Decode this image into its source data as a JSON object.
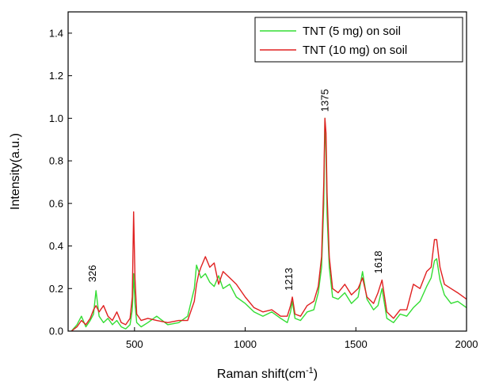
{
  "chart_data": {
    "type": "line",
    "title": "",
    "xlabel_main": "Raman shift(cm",
    "xlabel_sup": "-1",
    "xlabel_tail": ")",
    "ylabel": "Intensity(a.u.)",
    "xlim": [
      200,
      2000
    ],
    "ylim": [
      0,
      1.5
    ],
    "x_ticks": [
      500,
      1000,
      1500,
      2000
    ],
    "x_tick_labels": [
      "500",
      "1000",
      "1500",
      "2000"
    ],
    "y_ticks": [
      0.0,
      0.2,
      0.4,
      0.6,
      0.8,
      1.0,
      1.2,
      1.4
    ],
    "y_tick_labels": [
      "0.0",
      "0.2",
      "0.4",
      "0.6",
      "0.8",
      "1.0",
      "1.2",
      "1.4"
    ],
    "grid": false,
    "legend_position": "top-right",
    "annotations": [
      {
        "text": "326",
        "x": 326,
        "y": 0.23
      },
      {
        "text": "1213",
        "x": 1213,
        "y": 0.19
      },
      {
        "text": "1375",
        "x": 1375,
        "y": 1.03
      },
      {
        "text": "1618",
        "x": 1618,
        "y": 0.27
      }
    ],
    "series": [
      {
        "name": "TNT (5 mg) on soil",
        "color": "#33dd33",
        "x": [
          215,
          240,
          260,
          280,
          300,
          315,
          326,
          340,
          360,
          380,
          400,
          420,
          440,
          460,
          480,
          490,
          496,
          502,
          510,
          530,
          560,
          600,
          650,
          700,
          740,
          770,
          780,
          790,
          800,
          820,
          840,
          860,
          880,
          900,
          930,
          960,
          1000,
          1040,
          1080,
          1120,
          1160,
          1190,
          1205,
          1213,
          1225,
          1250,
          1280,
          1310,
          1330,
          1345,
          1355,
          1360,
          1365,
          1370,
          1380,
          1395,
          1420,
          1450,
          1480,
          1510,
          1530,
          1550,
          1580,
          1600,
          1618,
          1640,
          1670,
          1700,
          1730,
          1760,
          1790,
          1820,
          1840,
          1855,
          1865,
          1880,
          1900,
          1930,
          1960,
          2000
        ],
        "y": [
          0.0,
          0.03,
          0.07,
          0.02,
          0.05,
          0.08,
          0.19,
          0.07,
          0.04,
          0.06,
          0.03,
          0.05,
          0.02,
          0.01,
          0.03,
          0.1,
          0.27,
          0.13,
          0.04,
          0.02,
          0.04,
          0.07,
          0.03,
          0.04,
          0.07,
          0.2,
          0.31,
          0.28,
          0.25,
          0.27,
          0.23,
          0.21,
          0.26,
          0.2,
          0.22,
          0.16,
          0.13,
          0.09,
          0.07,
          0.09,
          0.06,
          0.04,
          0.09,
          0.14,
          0.06,
          0.05,
          0.09,
          0.1,
          0.18,
          0.3,
          0.6,
          1.0,
          0.84,
          0.55,
          0.3,
          0.16,
          0.15,
          0.18,
          0.13,
          0.16,
          0.28,
          0.15,
          0.1,
          0.12,
          0.2,
          0.06,
          0.04,
          0.08,
          0.07,
          0.11,
          0.14,
          0.21,
          0.25,
          0.33,
          0.34,
          0.24,
          0.17,
          0.13,
          0.14,
          0.11
        ]
      },
      {
        "name": "TNT (10 mg) on soil",
        "color": "#e02020",
        "x": [
          215,
          240,
          260,
          280,
          300,
          315,
          326,
          340,
          360,
          380,
          400,
          420,
          440,
          460,
          480,
          490,
          496,
          502,
          510,
          530,
          560,
          600,
          650,
          700,
          740,
          770,
          780,
          790,
          800,
          820,
          840,
          860,
          880,
          900,
          930,
          960,
          1000,
          1040,
          1080,
          1120,
          1160,
          1190,
          1205,
          1213,
          1225,
          1250,
          1280,
          1310,
          1330,
          1345,
          1355,
          1360,
          1365,
          1370,
          1380,
          1395,
          1420,
          1450,
          1480,
          1510,
          1530,
          1550,
          1580,
          1600,
          1618,
          1640,
          1670,
          1700,
          1730,
          1760,
          1790,
          1820,
          1840,
          1855,
          1865,
          1880,
          1900,
          1930,
          1960,
          2000
        ],
        "y": [
          0.0,
          0.02,
          0.05,
          0.03,
          0.06,
          0.1,
          0.12,
          0.09,
          0.12,
          0.07,
          0.05,
          0.09,
          0.04,
          0.03,
          0.06,
          0.16,
          0.56,
          0.25,
          0.08,
          0.05,
          0.06,
          0.05,
          0.04,
          0.05,
          0.05,
          0.14,
          0.22,
          0.27,
          0.3,
          0.35,
          0.3,
          0.32,
          0.22,
          0.28,
          0.25,
          0.22,
          0.16,
          0.11,
          0.09,
          0.1,
          0.07,
          0.07,
          0.12,
          0.16,
          0.08,
          0.07,
          0.12,
          0.14,
          0.21,
          0.35,
          0.7,
          1.0,
          0.93,
          0.65,
          0.35,
          0.2,
          0.18,
          0.22,
          0.17,
          0.2,
          0.25,
          0.16,
          0.13,
          0.18,
          0.24,
          0.09,
          0.06,
          0.1,
          0.1,
          0.22,
          0.2,
          0.28,
          0.3,
          0.43,
          0.43,
          0.3,
          0.22,
          0.2,
          0.18,
          0.15
        ]
      }
    ]
  }
}
